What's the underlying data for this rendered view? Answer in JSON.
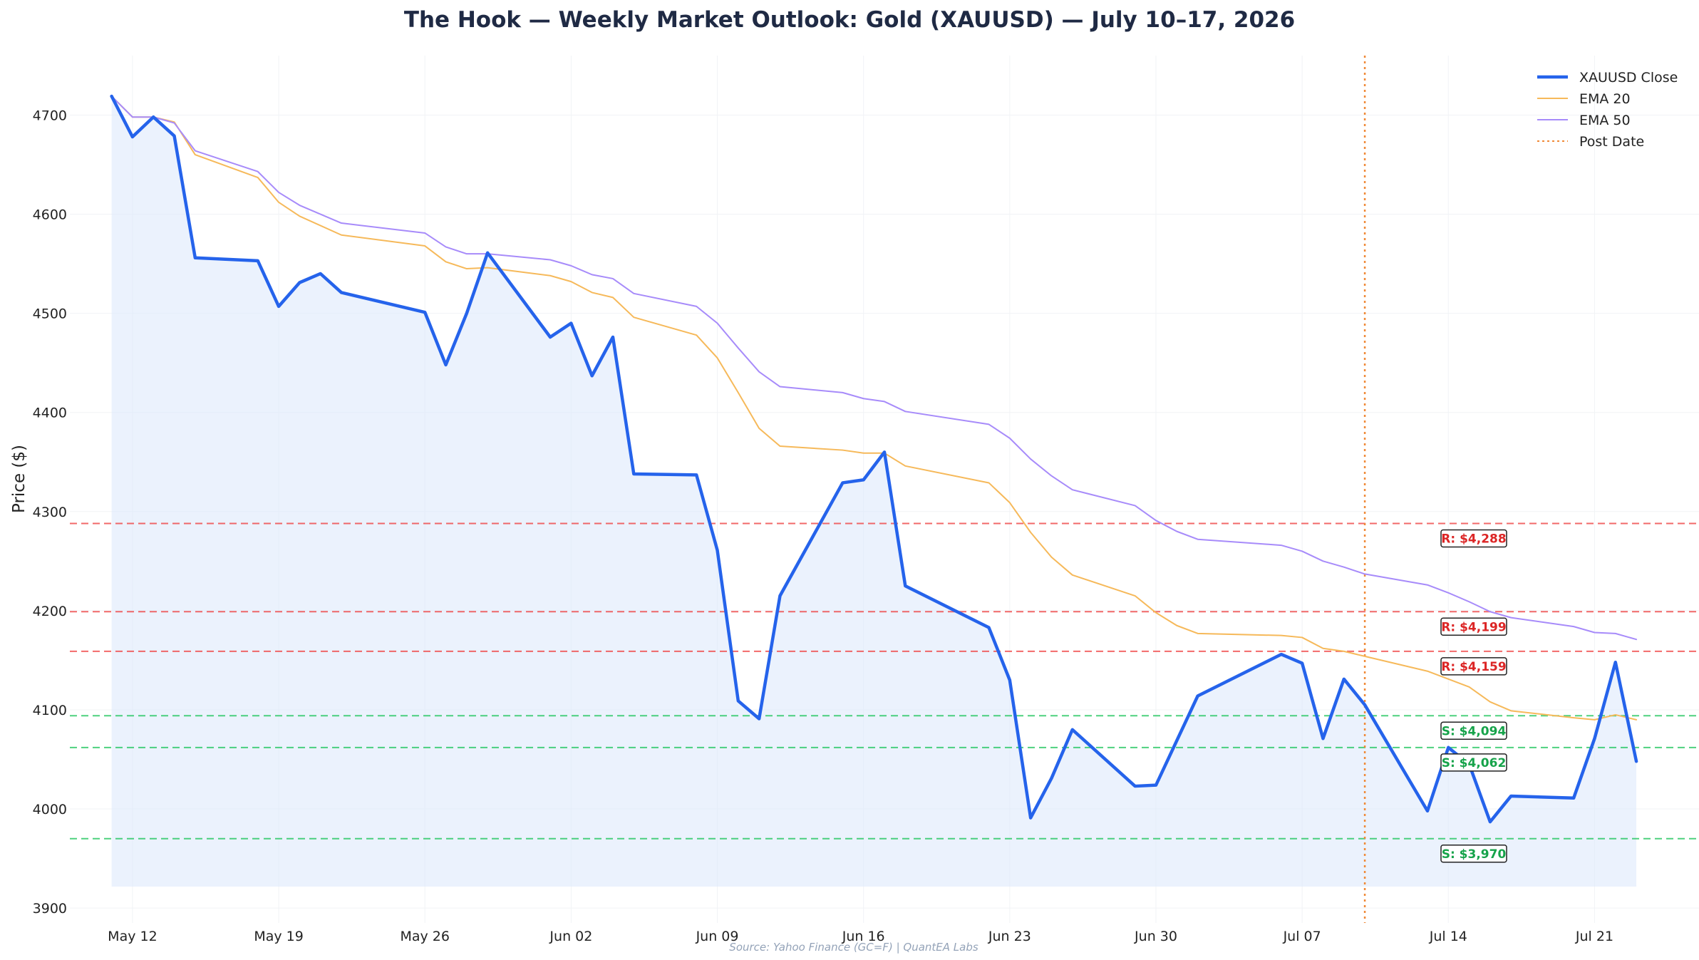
{
  "chart_data": {
    "type": "line",
    "title": "The Hook — Weekly Market Outlook: Gold (XAUUSD) — July 10–17, 2026",
    "xlabel": "",
    "ylabel": "Price ($)",
    "source": "Source: Yahoo Finance (GC=F) | QuantEA Labs",
    "x_ticks": [
      "May 12",
      "May 19",
      "May 26",
      "Jun 02",
      "Jun 09",
      "Jun 16",
      "Jun 23",
      "Jun 30",
      "Jul 07",
      "Jul 14",
      "Jul 21"
    ],
    "y_ticks": [
      "3900",
      "4000",
      "4100",
      "4200",
      "4300",
      "4400",
      "4500",
      "4600",
      "4700"
    ],
    "ylim": [
      3885,
      4760
    ],
    "xlim": [
      "2026-05-09",
      "2026-07-26"
    ],
    "grid": true,
    "legend_position": "top-right",
    "post_date": "2026-07-10",
    "series": [
      {
        "name": "XAUUSD Close",
        "color": "#2563eb",
        "points": [
          [
            "2026-05-11",
            4719
          ],
          [
            "2026-05-12",
            4678
          ],
          [
            "2026-05-13",
            4698
          ],
          [
            "2026-05-14",
            4679
          ],
          [
            "2026-05-15",
            4556
          ],
          [
            "2026-05-18",
            4553
          ],
          [
            "2026-05-19",
            4507
          ],
          [
            "2026-05-20",
            4531
          ],
          [
            "2026-05-21",
            4540
          ],
          [
            "2026-05-22",
            4521
          ],
          [
            "2026-05-26",
            4501
          ],
          [
            "2026-05-27",
            4448
          ],
          [
            "2026-05-28",
            4500
          ],
          [
            "2026-05-29",
            4561
          ],
          [
            "2026-06-01",
            4476
          ],
          [
            "2026-06-02",
            4490
          ],
          [
            "2026-06-03",
            4437
          ],
          [
            "2026-06-04",
            4476
          ],
          [
            "2026-06-05",
            4338
          ],
          [
            "2026-06-08",
            4337
          ],
          [
            "2026-06-09",
            4261
          ],
          [
            "2026-06-10",
            4109
          ],
          [
            "2026-06-11",
            4091
          ],
          [
            "2026-06-12",
            4215
          ],
          [
            "2026-06-15",
            4329
          ],
          [
            "2026-06-16",
            4332
          ],
          [
            "2026-06-17",
            4360
          ],
          [
            "2026-06-18",
            4225
          ],
          [
            "2026-06-22",
            4183
          ],
          [
            "2026-06-23",
            4130
          ],
          [
            "2026-06-24",
            3991
          ],
          [
            "2026-06-25",
            4031
          ],
          [
            "2026-06-26",
            4080
          ],
          [
            "2026-06-29",
            4023
          ],
          [
            "2026-06-30",
            4024
          ],
          [
            "2026-07-02",
            4114
          ],
          [
            "2026-07-06",
            4156
          ],
          [
            "2026-07-07",
            4147
          ],
          [
            "2026-07-08",
            4071
          ],
          [
            "2026-07-09",
            4131
          ],
          [
            "2026-07-10",
            4105
          ],
          [
            "2026-07-13",
            3998
          ],
          [
            "2026-07-14",
            4062
          ],
          [
            "2026-07-15",
            4045
          ],
          [
            "2026-07-16",
            3987
          ],
          [
            "2026-07-17",
            4013
          ],
          [
            "2026-07-20",
            4011
          ],
          [
            "2026-07-21",
            4071
          ],
          [
            "2026-07-22",
            4148
          ],
          [
            "2026-07-23",
            4048
          ]
        ]
      },
      {
        "name": "EMA 20",
        "color": "#f6b95a",
        "points": [
          [
            "2026-05-11",
            4719
          ],
          [
            "2026-05-12",
            4698
          ],
          [
            "2026-05-13",
            4698
          ],
          [
            "2026-05-14",
            4693
          ],
          [
            "2026-05-15",
            4660
          ],
          [
            "2026-05-18",
            4637
          ],
          [
            "2026-05-19",
            4612
          ],
          [
            "2026-05-20",
            4598
          ],
          [
            "2026-05-22",
            4579
          ],
          [
            "2026-05-26",
            4568
          ],
          [
            "2026-05-27",
            4552
          ],
          [
            "2026-05-28",
            4545
          ],
          [
            "2026-05-29",
            4546
          ],
          [
            "2026-06-01",
            4538
          ],
          [
            "2026-06-02",
            4532
          ],
          [
            "2026-06-03",
            4521
          ],
          [
            "2026-06-04",
            4516
          ],
          [
            "2026-06-05",
            4496
          ],
          [
            "2026-06-08",
            4478
          ],
          [
            "2026-06-09",
            4455
          ],
          [
            "2026-06-10",
            4420
          ],
          [
            "2026-06-11",
            4384
          ],
          [
            "2026-06-12",
            4366
          ],
          [
            "2026-06-15",
            4362
          ],
          [
            "2026-06-16",
            4359
          ],
          [
            "2026-06-17",
            4359
          ],
          [
            "2026-06-18",
            4346
          ],
          [
            "2026-06-22",
            4329
          ],
          [
            "2026-06-23",
            4309
          ],
          [
            "2026-06-24",
            4279
          ],
          [
            "2026-06-25",
            4254
          ],
          [
            "2026-06-26",
            4236
          ],
          [
            "2026-06-29",
            4215
          ],
          [
            "2026-06-30",
            4198
          ],
          [
            "2026-07-01",
            4185
          ],
          [
            "2026-07-02",
            4177
          ],
          [
            "2026-07-06",
            4175
          ],
          [
            "2026-07-07",
            4173
          ],
          [
            "2026-07-08",
            4162
          ],
          [
            "2026-07-09",
            4159
          ],
          [
            "2026-07-10",
            4154
          ],
          [
            "2026-07-13",
            4139
          ],
          [
            "2026-07-14",
            4131
          ],
          [
            "2026-07-15",
            4123
          ],
          [
            "2026-07-16",
            4108
          ],
          [
            "2026-07-17",
            4099
          ],
          [
            "2026-07-20",
            4092
          ],
          [
            "2026-07-21",
            4090
          ],
          [
            "2026-07-22",
            4095
          ],
          [
            "2026-07-23",
            4090
          ]
        ]
      },
      {
        "name": "EMA 50",
        "color": "#a78bfa",
        "points": [
          [
            "2026-05-11",
            4719
          ],
          [
            "2026-05-12",
            4698
          ],
          [
            "2026-05-13",
            4698
          ],
          [
            "2026-05-14",
            4692
          ],
          [
            "2026-05-15",
            4664
          ],
          [
            "2026-05-18",
            4643
          ],
          [
            "2026-05-19",
            4622
          ],
          [
            "2026-05-20",
            4609
          ],
          [
            "2026-05-22",
            4591
          ],
          [
            "2026-05-26",
            4581
          ],
          [
            "2026-05-27",
            4567
          ],
          [
            "2026-05-28",
            4560
          ],
          [
            "2026-05-29",
            4560
          ],
          [
            "2026-06-01",
            4554
          ],
          [
            "2026-06-02",
            4548
          ],
          [
            "2026-06-03",
            4539
          ],
          [
            "2026-06-04",
            4535
          ],
          [
            "2026-06-05",
            4520
          ],
          [
            "2026-06-08",
            4507
          ],
          [
            "2026-06-09",
            4490
          ],
          [
            "2026-06-10",
            4465
          ],
          [
            "2026-06-11",
            4441
          ],
          [
            "2026-06-12",
            4426
          ],
          [
            "2026-06-15",
            4420
          ],
          [
            "2026-06-16",
            4414
          ],
          [
            "2026-06-17",
            4411
          ],
          [
            "2026-06-18",
            4401
          ],
          [
            "2026-06-22",
            4388
          ],
          [
            "2026-06-23",
            4374
          ],
          [
            "2026-06-24",
            4353
          ],
          [
            "2026-06-25",
            4336
          ],
          [
            "2026-06-26",
            4322
          ],
          [
            "2026-06-29",
            4306
          ],
          [
            "2026-06-30",
            4291
          ],
          [
            "2026-07-01",
            4280
          ],
          [
            "2026-07-02",
            4272
          ],
          [
            "2026-07-06",
            4266
          ],
          [
            "2026-07-07",
            4260
          ],
          [
            "2026-07-08",
            4250
          ],
          [
            "2026-07-09",
            4244
          ],
          [
            "2026-07-10",
            4237
          ],
          [
            "2026-07-13",
            4226
          ],
          [
            "2026-07-14",
            4218
          ],
          [
            "2026-07-15",
            4209
          ],
          [
            "2026-07-16",
            4199
          ],
          [
            "2026-07-17",
            4193
          ],
          [
            "2026-07-20",
            4184
          ],
          [
            "2026-07-21",
            4178
          ],
          [
            "2026-07-22",
            4177
          ],
          [
            "2026-07-23",
            4171
          ]
        ]
      }
    ],
    "legend": [
      {
        "label": "XAUUSD Close",
        "color": "#2563eb",
        "style": "solid-thick"
      },
      {
        "label": "EMA 20",
        "color": "#f6b95a",
        "style": "solid"
      },
      {
        "label": "EMA 50",
        "color": "#a78bfa",
        "style": "solid"
      },
      {
        "label": "Post Date",
        "color": "#f08a38",
        "style": "dotted"
      }
    ],
    "levels": [
      {
        "label": "R: $4,288",
        "value": 4288,
        "kind": "resistance",
        "color": "#ef4444"
      },
      {
        "label": "R: $4,199",
        "value": 4199,
        "kind": "resistance",
        "color": "#ef4444"
      },
      {
        "label": "R: $4,159",
        "value": 4159,
        "kind": "resistance",
        "color": "#ef4444"
      },
      {
        "label": "S: $4,094",
        "value": 4094,
        "kind": "support",
        "color": "#22c55e"
      },
      {
        "label": "S: $4,062",
        "value": 4062,
        "kind": "support",
        "color": "#22c55e"
      },
      {
        "label": "S: $3,970",
        "value": 3970,
        "kind": "support",
        "color": "#22c55e"
      }
    ]
  }
}
